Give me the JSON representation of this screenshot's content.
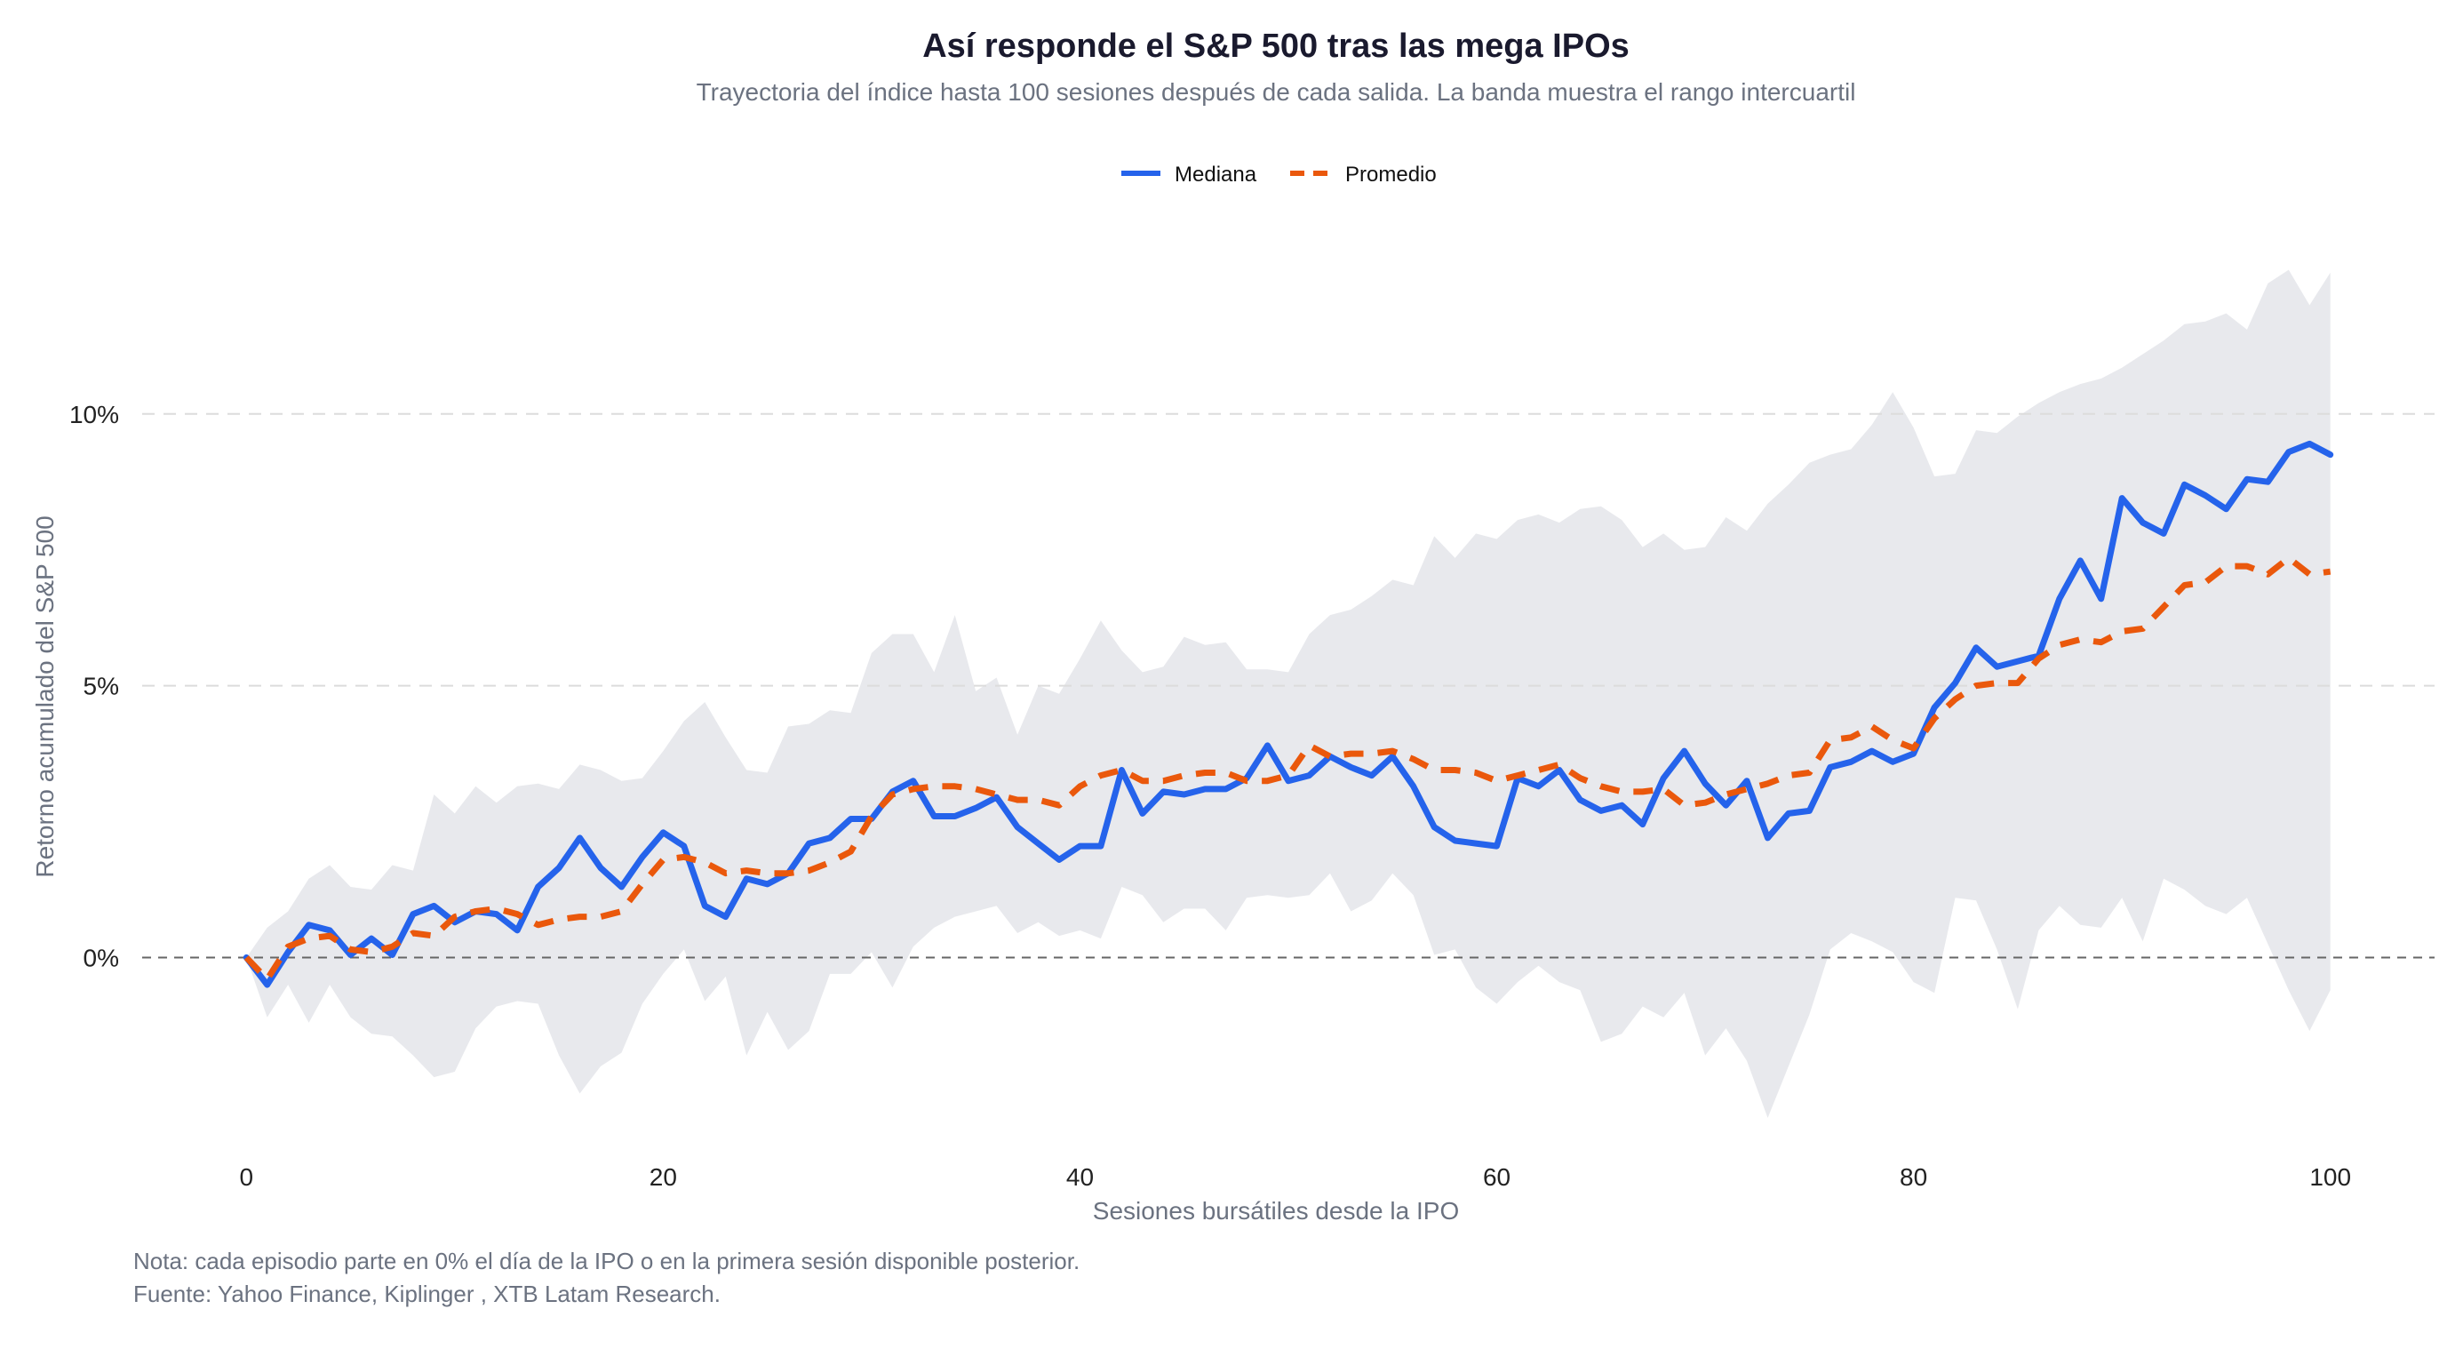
{
  "colors": {
    "mediana": "#2563eb",
    "promedio": "#ea580c",
    "band": "#e8e9ed",
    "grid": "#dcdcdc",
    "zero_line": "#666666"
  },
  "chart_data": {
    "type": "line",
    "title": "Así responde el S&P 500 tras las mega IPOs",
    "subtitle": "Trayectoria del índice hasta 100 sesiones después de cada salida. La banda muestra el rango intercuartil",
    "xlabel": "Sesiones bursátiles desde la IPO",
    "ylabel": "Retorno acumulado del S&P 500",
    "xlim": [
      -5,
      105
    ],
    "ylim": [
      -3.8,
      13.2
    ],
    "x_ticks": [
      0,
      20,
      40,
      60,
      80,
      100
    ],
    "x_tick_labels": [
      "0",
      "20",
      "40",
      "60",
      "80",
      "100"
    ],
    "y_ticks": [
      0,
      5,
      10
    ],
    "y_tick_labels": [
      "0%",
      "5%",
      "10%"
    ],
    "grid": "horizontal dashed",
    "legend_position": "top-center",
    "x": [
      0,
      1,
      2,
      3,
      4,
      5,
      6,
      7,
      8,
      9,
      10,
      11,
      12,
      13,
      14,
      15,
      16,
      17,
      18,
      19,
      20,
      21,
      22,
      23,
      24,
      25,
      26,
      27,
      28,
      29,
      30,
      31,
      32,
      33,
      34,
      35,
      36,
      37,
      38,
      39,
      40,
      41,
      42,
      43,
      44,
      45,
      46,
      47,
      48,
      49,
      50,
      51,
      52,
      53,
      54,
      55,
      56,
      57,
      58,
      59,
      60,
      61,
      62,
      63,
      64,
      65,
      66,
      67,
      68,
      69,
      70,
      71,
      72,
      73,
      74,
      75,
      76,
      77,
      78,
      79,
      80,
      81,
      82,
      83,
      84,
      85,
      86,
      87,
      88,
      89,
      90,
      91,
      92,
      93,
      94,
      95,
      96,
      97,
      98,
      99,
      100
    ],
    "series": [
      {
        "name": "Mediana",
        "style": "solid",
        "values": [
          0,
          -0.5,
          0.1,
          0.6,
          0.5,
          0.05,
          0.35,
          0.05,
          0.8,
          0.95,
          0.65,
          0.85,
          0.8,
          0.5,
          1.3,
          1.65,
          2.2,
          1.65,
          1.3,
          1.85,
          2.3,
          2.05,
          0.95,
          0.75,
          1.45,
          1.35,
          1.55,
          2.1,
          2.2,
          2.55,
          2.55,
          3.05,
          3.25,
          2.6,
          2.6,
          2.75,
          2.95,
          2.4,
          2.1,
          1.8,
          2.05,
          2.05,
          3.45,
          2.65,
          3.05,
          3.0,
          3.1,
          3.1,
          3.3,
          3.9,
          3.25,
          3.35,
          3.7,
          3.5,
          3.35,
          3.7,
          3.15,
          2.4,
          2.15,
          2.1,
          2.05,
          3.3,
          3.15,
          3.45,
          2.9,
          2.7,
          2.8,
          2.45,
          3.3,
          3.8,
          3.2,
          2.8,
          3.25,
          2.2,
          2.65,
          2.7,
          3.5,
          3.6,
          3.8,
          3.6,
          3.75,
          4.6,
          5.05,
          5.7,
          5.35,
          5.45,
          5.55,
          6.6,
          7.3,
          6.6,
          8.45,
          8.0,
          7.8,
          8.7,
          8.5,
          8.25,
          8.8,
          8.75,
          9.3,
          9.45,
          9.25
        ]
      },
      {
        "name": "Promedio",
        "style": "dashed",
        "values": [
          0,
          -0.4,
          0.2,
          0.35,
          0.4,
          0.15,
          0.1,
          0.2,
          0.45,
          0.4,
          0.75,
          0.85,
          0.9,
          0.8,
          0.6,
          0.7,
          0.75,
          0.75,
          0.85,
          1.35,
          1.8,
          1.85,
          1.75,
          1.55,
          1.6,
          1.55,
          1.55,
          1.6,
          1.75,
          1.95,
          2.6,
          3.0,
          3.1,
          3.15,
          3.15,
          3.1,
          3.0,
          2.9,
          2.9,
          2.8,
          3.15,
          3.35,
          3.45,
          3.25,
          3.25,
          3.35,
          3.4,
          3.4,
          3.25,
          3.25,
          3.35,
          3.9,
          3.7,
          3.75,
          3.75,
          3.8,
          3.65,
          3.45,
          3.45,
          3.4,
          3.25,
          3.35,
          3.45,
          3.55,
          3.3,
          3.15,
          3.05,
          3.05,
          3.1,
          2.8,
          2.85,
          3.0,
          3.1,
          3.2,
          3.35,
          3.4,
          4.0,
          4.05,
          4.25,
          4.0,
          3.85,
          4.4,
          4.75,
          5.0,
          5.05,
          5.05,
          5.5,
          5.75,
          5.85,
          5.8,
          6.0,
          6.05,
          6.45,
          6.85,
          6.9,
          7.2,
          7.2,
          7.05,
          7.35,
          7.05,
          7.1
        ]
      }
    ],
    "band": {
      "lower": [
        0,
        -1.1,
        -0.5,
        -1.2,
        -0.5,
        -1.1,
        -1.4,
        -1.45,
        -1.8,
        -2.2,
        -2.1,
        -1.3,
        -0.9,
        -0.8,
        -0.85,
        -1.8,
        -2.5,
        -2.0,
        -1.75,
        -0.85,
        -0.3,
        0.15,
        -0.8,
        -0.35,
        -1.8,
        -1.0,
        -1.7,
        -1.35,
        -0.3,
        -0.3,
        0.1,
        -0.55,
        0.2,
        0.55,
        0.75,
        0.85,
        0.95,
        0.45,
        0.65,
        0.4,
        0.5,
        0.35,
        1.3,
        1.15,
        0.65,
        0.9,
        0.9,
        0.5,
        1.1,
        1.15,
        1.1,
        1.15,
        1.55,
        0.85,
        1.05,
        1.55,
        1.15,
        0.05,
        0.15,
        -0.55,
        -0.85,
        -0.45,
        -0.15,
        -0.45,
        -0.6,
        -1.55,
        -1.4,
        -0.9,
        -1.1,
        -0.65,
        -1.8,
        -1.3,
        -1.9,
        -2.95,
        -2.0,
        -1.05,
        0.15,
        0.45,
        0.3,
        0.1,
        -0.45,
        -0.65,
        1.1,
        1.05,
        0.15,
        -0.95,
        0.5,
        0.95,
        0.6,
        0.55,
        1.1,
        0.3,
        1.45,
        1.25,
        0.95,
        0.8,
        1.1,
        0.25,
        -0.6,
        -1.35,
        -0.6
      ],
      "upper": [
        0,
        0.55,
        0.85,
        1.45,
        1.7,
        1.3,
        1.25,
        1.7,
        1.6,
        3.0,
        2.65,
        3.15,
        2.85,
        3.15,
        3.2,
        3.1,
        3.55,
        3.45,
        3.25,
        3.3,
        3.8,
        4.35,
        4.7,
        4.05,
        3.45,
        3.4,
        4.25,
        4.3,
        4.55,
        4.5,
        5.6,
        5.95,
        5.95,
        5.25,
        6.3,
        4.9,
        5.15,
        4.1,
        5.0,
        4.85,
        5.5,
        6.2,
        5.65,
        5.25,
        5.35,
        5.9,
        5.75,
        5.8,
        5.3,
        5.3,
        5.25,
        5.95,
        6.3,
        6.4,
        6.65,
        6.95,
        6.85,
        7.75,
        7.35,
        7.8,
        7.7,
        8.05,
        8.15,
        8.0,
        8.25,
        8.3,
        8.05,
        7.55,
        7.8,
        7.5,
        7.55,
        8.1,
        7.85,
        8.35,
        8.7,
        9.1,
        9.25,
        9.35,
        9.8,
        10.4,
        9.75,
        8.85,
        8.9,
        9.7,
        9.65,
        9.95,
        10.2,
        10.4,
        10.55,
        10.65,
        10.85,
        11.1,
        11.35,
        11.65,
        11.7,
        11.85,
        11.55,
        12.4,
        12.65,
        12.0,
        12.6
      ]
    },
    "reference_line": {
      "y": 0,
      "style": "dashed"
    }
  },
  "legend": {
    "mediana": "Mediana",
    "promedio": "Promedio"
  },
  "footer": {
    "note": "Nota: cada episodio parte en 0% el día de la IPO o en la primera sesión disponible posterior.",
    "source": "Fuente: Yahoo Finance, Kiplinger , XTB Latam Research."
  }
}
